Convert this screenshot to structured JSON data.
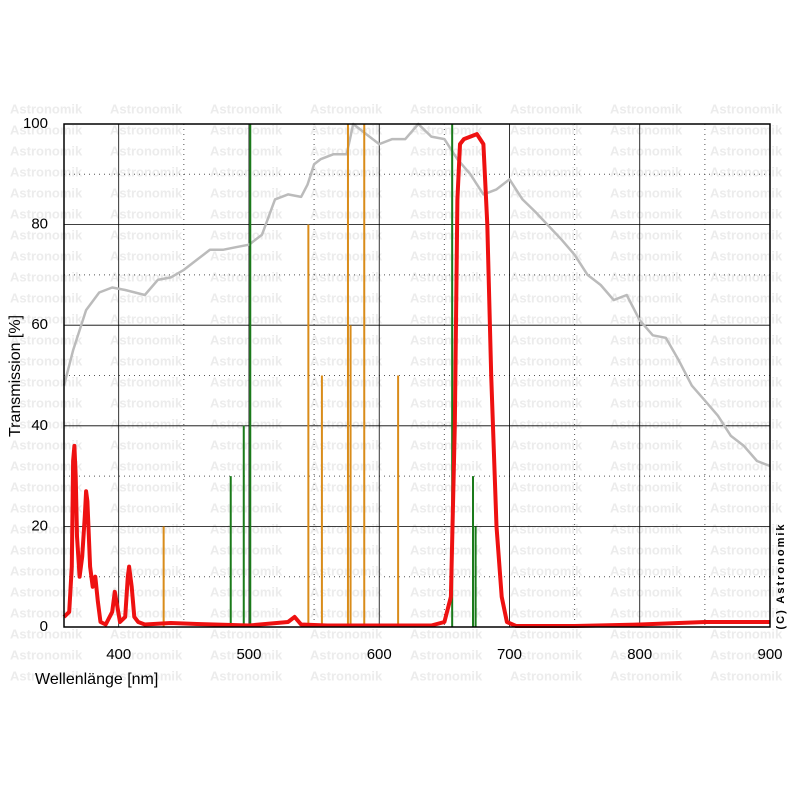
{
  "chart_data": {
    "type": "line",
    "x_label": "Wellenlänge [nm]",
    "y_label": "Transmission [%]",
    "credit": "(C) Astronomik",
    "watermark": "Astronomik",
    "xlim": [
      358,
      900
    ],
    "ylim": [
      0,
      100
    ],
    "xticks": [
      400,
      500,
      600,
      700,
      800,
      900
    ],
    "yticks": [
      0,
      20,
      40,
      60,
      80,
      100
    ],
    "grid": true,
    "series": [
      {
        "kind": "line",
        "color": "#bbbbbb",
        "width": 2.5,
        "x": [
          358,
          365,
          375,
          385,
          395,
          405,
          420,
          430,
          440,
          450,
          460,
          470,
          480,
          490,
          500,
          510,
          520,
          530,
          540,
          545,
          550,
          555,
          565,
          575,
          580,
          590,
          600,
          610,
          620,
          630,
          640,
          650,
          655,
          660,
          670,
          680,
          690,
          700,
          710,
          720,
          740,
          750,
          760,
          770,
          780,
          790,
          800,
          810,
          820,
          830,
          840,
          850,
          860,
          870,
          880,
          890,
          900
        ],
        "values": [
          48,
          55,
          63,
          66.5,
          67.5,
          67,
          66,
          69,
          69.5,
          71,
          73,
          75,
          75,
          75.5,
          76,
          78,
          85,
          86,
          85.5,
          88,
          92,
          93,
          94,
          94,
          100,
          98,
          96,
          97,
          97,
          100,
          97.5,
          97,
          95,
          93,
          90,
          86,
          87,
          89,
          85,
          82.5,
          77,
          74,
          70,
          68,
          65,
          66,
          61,
          58,
          57.5,
          53,
          48,
          45,
          42,
          38,
          36,
          33,
          32
        ]
      },
      {
        "kind": "stem",
        "color": "#1a7a1a",
        "width": 2,
        "x": [
          486,
          496,
          501,
          656,
          672,
          674
        ],
        "values": [
          30,
          40,
          100,
          100,
          30,
          20
        ]
      },
      {
        "kind": "stem",
        "color": "#d98c1a",
        "width": 2,
        "x": [
          434.5,
          545.6,
          556,
          576,
          578,
          588.5,
          614.5
        ],
        "values": [
          20,
          80,
          50,
          100,
          60,
          100,
          50
        ]
      },
      {
        "kind": "line",
        "color": "#ee1111",
        "width": 4,
        "x": [
          358,
          362,
          364,
          365,
          366,
          367,
          368,
          370,
          372,
          374,
          375,
          376,
          378,
          380,
          382,
          384,
          386,
          390,
          395,
          397,
          399,
          401,
          405,
          407,
          408,
          410,
          412,
          415,
          420,
          440,
          460,
          500,
          530,
          535,
          540,
          560,
          640,
          650,
          655,
          658,
          660,
          662,
          665,
          670,
          675,
          680,
          683,
          686,
          690,
          694,
          698,
          705,
          750,
          800,
          850,
          900
        ],
        "values": [
          2,
          3,
          12,
          33,
          36,
          30,
          18,
          10,
          14,
          22,
          27,
          25,
          12,
          8,
          10,
          5,
          1,
          0.5,
          3,
          7,
          4,
          1,
          2,
          10,
          12,
          8,
          2,
          1,
          0.5,
          0.8,
          0.6,
          0.3,
          1,
          2,
          0.5,
          0.3,
          0.3,
          1,
          6,
          40,
          85,
          96,
          97,
          97.5,
          98,
          96,
          80,
          50,
          20,
          6,
          1,
          0.2,
          0.2,
          0.5,
          1,
          1
        ]
      }
    ]
  }
}
